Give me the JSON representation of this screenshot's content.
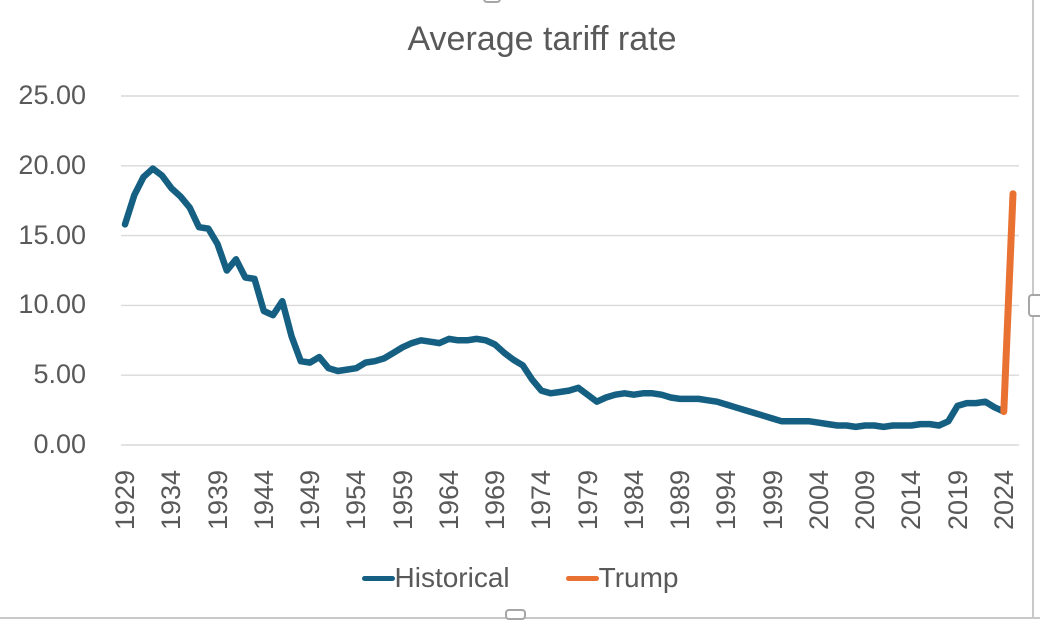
{
  "title": "Average tariff rate",
  "colors": {
    "historical_line": "#156082",
    "trump_line": "#E97132",
    "gridline": "#D9D9D9",
    "axis_text": "#595959",
    "title_text": "#595959",
    "frame_border": "#C9C9C9"
  },
  "legend": {
    "position": "bottom",
    "items": [
      {
        "label": "Historical",
        "color": "#156082"
      },
      {
        "label": "Trump",
        "color": "#E97132"
      }
    ]
  },
  "y_axis": {
    "tick_labels": [
      "0.00",
      "5.00",
      "10.00",
      "15.00",
      "20.00",
      "25.00"
    ],
    "tick_values": [
      0,
      5,
      10,
      15,
      20,
      25
    ]
  },
  "x_axis": {
    "tick_labels": [
      "1929",
      "1934",
      "1939",
      "1944",
      "1949",
      "1954",
      "1959",
      "1964",
      "1969",
      "1974",
      "1979",
      "1984",
      "1989",
      "1994",
      "1999",
      "2004",
      "2009",
      "2014",
      "2019",
      "2024"
    ],
    "tick_years": [
      1929,
      1934,
      1939,
      1944,
      1949,
      1954,
      1959,
      1964,
      1969,
      1974,
      1979,
      1984,
      1989,
      1994,
      1999,
      2004,
      2009,
      2014,
      2019,
      2024
    ]
  },
  "chart_data": {
    "type": "line",
    "title": "Average tariff rate",
    "xlabel": "",
    "ylabel": "",
    "ylim": [
      0,
      25
    ],
    "x_range": [
      1929,
      2026
    ],
    "grid": true,
    "legend_position": "bottom",
    "series": [
      {
        "name": "Historical",
        "color": "#156082",
        "x_start": 1929,
        "x_step": 1,
        "values": [
          15.8,
          17.9,
          19.2,
          19.8,
          19.3,
          18.4,
          17.8,
          17.0,
          15.6,
          15.5,
          14.4,
          12.5,
          13.3,
          12.0,
          11.9,
          9.6,
          9.3,
          10.3,
          7.8,
          6.0,
          5.9,
          6.3,
          5.5,
          5.3,
          5.4,
          5.5,
          5.9,
          6.0,
          6.2,
          6.6,
          7.0,
          7.3,
          7.5,
          7.4,
          7.3,
          7.6,
          7.5,
          7.5,
          7.6,
          7.5,
          7.2,
          6.6,
          6.1,
          5.7,
          4.7,
          3.9,
          3.7,
          3.8,
          3.9,
          4.1,
          3.6,
          3.1,
          3.4,
          3.6,
          3.7,
          3.6,
          3.7,
          3.7,
          3.6,
          3.4,
          3.3,
          3.3,
          3.3,
          3.2,
          3.1,
          2.9,
          2.7,
          2.5,
          2.3,
          2.1,
          1.9,
          1.7,
          1.7,
          1.7,
          1.7,
          1.6,
          1.5,
          1.4,
          1.4,
          1.3,
          1.4,
          1.4,
          1.3,
          1.4,
          1.4,
          1.4,
          1.5,
          1.5,
          1.4,
          1.7,
          2.8,
          3.0,
          3.0,
          3.1,
          2.7,
          2.4
        ]
      },
      {
        "name": "Trump",
        "color": "#E97132",
        "x": [
          2024,
          2025
        ],
        "values": [
          2.4,
          18.0
        ]
      }
    ]
  }
}
